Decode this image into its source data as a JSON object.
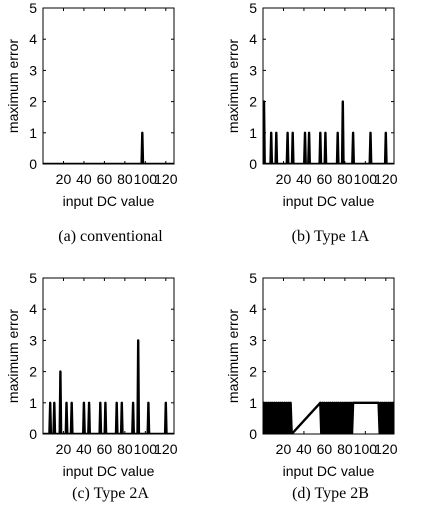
{
  "chart_data": [
    {
      "type": "line",
      "caption": "(a) conventional",
      "xlabel": "input DC value",
      "ylabel": "maximum error",
      "xlim": [
        0,
        128
      ],
      "ylim": [
        0,
        5
      ],
      "xticks": [
        20,
        40,
        60,
        80,
        100,
        120
      ],
      "yticks": [
        0,
        1,
        2,
        3,
        4,
        5
      ],
      "spikes": [
        {
          "x": 97,
          "y": 1
        }
      ]
    },
    {
      "type": "line",
      "caption": "(b) Type 1A",
      "xlabel": "input DC value",
      "ylabel": "maximum error",
      "xlim": [
        0,
        128
      ],
      "ylim": [
        0,
        5
      ],
      "xticks": [
        20,
        40,
        60,
        80,
        100,
        120
      ],
      "yticks": [
        0,
        1,
        2,
        3,
        4,
        5
      ],
      "spikes": [
        {
          "x": 1,
          "y": 2
        },
        {
          "x": 8,
          "y": 1
        },
        {
          "x": 13,
          "y": 1
        },
        {
          "x": 24,
          "y": 1
        },
        {
          "x": 29,
          "y": 1
        },
        {
          "x": 41,
          "y": 1
        },
        {
          "x": 45,
          "y": 1
        },
        {
          "x": 56,
          "y": 1
        },
        {
          "x": 61,
          "y": 1
        },
        {
          "x": 73,
          "y": 1
        },
        {
          "x": 78,
          "y": 2
        },
        {
          "x": 88,
          "y": 1
        },
        {
          "x": 105,
          "y": 1
        },
        {
          "x": 120,
          "y": 1
        }
      ]
    },
    {
      "type": "line",
      "caption": "(c) Type 2A",
      "xlabel": "input DC value",
      "ylabel": "maximum error",
      "xlim": [
        0,
        128
      ],
      "ylim": [
        0,
        5
      ],
      "xticks": [
        20,
        40,
        60,
        80,
        100,
        120
      ],
      "yticks": [
        0,
        1,
        2,
        3,
        4,
        5
      ],
      "spikes": [
        {
          "x": 7,
          "y": 1
        },
        {
          "x": 11,
          "y": 1
        },
        {
          "x": 17,
          "y": 2
        },
        {
          "x": 23,
          "y": 1
        },
        {
          "x": 28,
          "y": 1
        },
        {
          "x": 40,
          "y": 1
        },
        {
          "x": 45,
          "y": 1
        },
        {
          "x": 56,
          "y": 1
        },
        {
          "x": 61,
          "y": 1
        },
        {
          "x": 72,
          "y": 1
        },
        {
          "x": 77,
          "y": 1
        },
        {
          "x": 88,
          "y": 1
        },
        {
          "x": 93,
          "y": 3
        },
        {
          "x": 103,
          "y": 1
        },
        {
          "x": 120,
          "y": 1
        }
      ]
    },
    {
      "type": "line",
      "caption": "(d) Type 2B",
      "xlabel": "input DC value",
      "ylabel": "maximum error",
      "xlim": [
        0,
        128
      ],
      "ylim": [
        0,
        5
      ],
      "xticks": [
        20,
        40,
        60,
        80,
        100,
        120
      ],
      "yticks": [
        0,
        1,
        2,
        3,
        4,
        5
      ],
      "toggle_ranges": [
        [
          1,
          28
        ],
        [
          56,
          88
        ],
        [
          113,
          128
        ]
      ],
      "toggle_level": 1
    }
  ]
}
